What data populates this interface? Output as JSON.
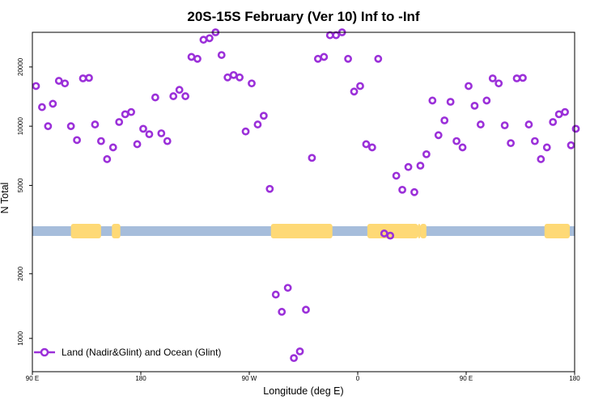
{
  "chart_data": {
    "type": "scatter",
    "title": "20S-15S February (Ver 10)   Inf to -Inf",
    "xlabel": "Longitude (deg E)",
    "ylabel": "N Total",
    "x_ticks": [
      {
        "label": "90 E",
        "value": 90
      },
      {
        "label": "180",
        "value": 180
      },
      {
        "label": "90 W",
        "value": 270
      },
      {
        "label": "0",
        "value": 360
      },
      {
        "label": "90 E",
        "value": 450
      },
      {
        "label": "180",
        "value": 540
      }
    ],
    "xlim": [
      90,
      540
    ],
    "upper_panel": {
      "scale": "log",
      "ylim": [
        3100,
        30000
      ],
      "y_ticks": [
        5000,
        10000,
        20000
      ]
    },
    "lower_panel": {
      "scale": "log",
      "ylim": [
        700,
        3000
      ],
      "y_ticks": [
        1000,
        2000
      ]
    },
    "land_mask_colors": {
      "ocean": "#a6bddb",
      "land": "#fed976"
    },
    "land_segments": [
      [
        122,
        147
      ],
      [
        156,
        163
      ],
      [
        288,
        339
      ],
      [
        368,
        410
      ],
      [
        412,
        417
      ],
      [
        410,
        412
      ],
      [
        515,
        536
      ]
    ],
    "legend": {
      "position": "bottom-left",
      "label": "Land (Nadir&Glint) and Ocean (Glint)"
    },
    "series": [
      {
        "name": "Land (Nadir&Glint) and Ocean (Glint)",
        "color": "#9b30d9",
        "marker": "open-circle",
        "x": [
          93,
          98,
          103,
          107,
          112,
          117,
          122,
          127,
          132,
          137,
          142,
          147,
          152,
          157,
          162,
          167,
          172,
          177,
          182,
          187,
          192,
          197,
          202,
          207,
          212,
          217,
          222,
          227,
          232,
          237,
          242,
          247,
          252,
          257,
          262,
          267,
          272,
          277,
          282,
          287,
          292,
          297,
          302,
          307,
          312,
          317,
          322,
          327,
          332,
          337,
          342,
          347,
          352,
          357,
          362,
          367,
          372,
          377,
          382,
          387,
          392,
          397,
          402,
          407,
          412,
          417,
          422,
          427,
          432,
          437,
          442,
          447,
          452,
          457,
          462,
          467,
          472,
          477,
          482,
          487,
          492,
          497,
          502,
          507,
          512,
          517,
          522,
          527,
          532,
          537,
          541
        ],
        "y": [
          16000,
          12500,
          10000,
          13000,
          17000,
          16500,
          10000,
          8500,
          17500,
          17600,
          10200,
          8400,
          6800,
          7800,
          10500,
          11500,
          11800,
          8100,
          9700,
          9100,
          14000,
          9200,
          8400,
          14200,
          15300,
          14200,
          22500,
          22000,
          27500,
          28000,
          30500,
          23000,
          17700,
          18200,
          17700,
          9400,
          16500,
          10200,
          11300,
          4800,
          1600,
          1330,
          1720,
          810,
          870,
          1360,
          6900,
          22000,
          22500,
          29000,
          29000,
          30000,
          22000,
          15000,
          16000,
          8100,
          7800,
          22000,
          3080,
          3010,
          5600,
          4750,
          6200,
          4620,
          6300,
          7200,
          13500,
          9000,
          10700,
          13300,
          8400,
          7800,
          16000,
          12700,
          10200,
          13500,
          17500,
          16500,
          10100,
          8200,
          17500,
          17600,
          10200,
          8400,
          6800,
          7800,
          10500,
          11500,
          11800,
          8000,
          9700
        ]
      }
    ]
  }
}
